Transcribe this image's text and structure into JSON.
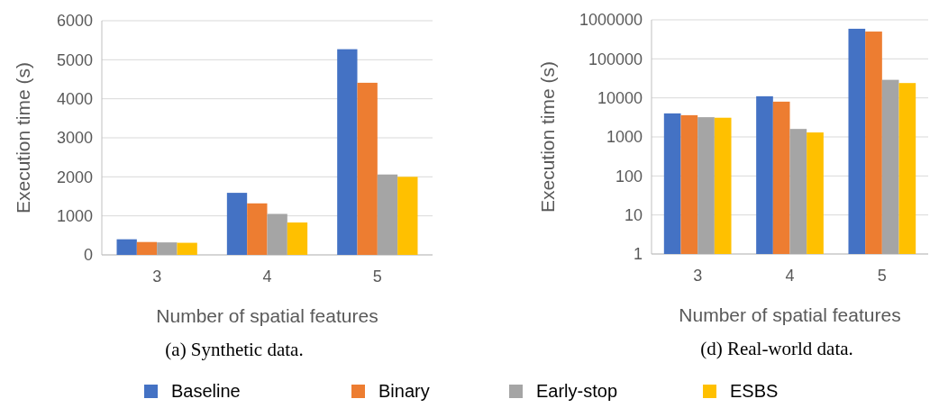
{
  "chart_data": [
    {
      "type": "bar",
      "title": "(a) Synthetic data.",
      "xlabel": "Number of spatial features",
      "ylabel": "Execution time (s)",
      "categories": [
        "3",
        "4",
        "5"
      ],
      "series": [
        {
          "name": "Baseline",
          "color": "#4472c4",
          "values": [
            400,
            1590,
            5270
          ]
        },
        {
          "name": "Binary",
          "color": "#ed7d31",
          "values": [
            330,
            1320,
            4410
          ]
        },
        {
          "name": "Early-stop",
          "color": "#a5a5a5",
          "values": [
            320,
            1050,
            2060
          ]
        },
        {
          "name": "ESBS",
          "color": "#ffc000",
          "values": [
            310,
            830,
            2000
          ]
        }
      ],
      "ylim": [
        0,
        6000
      ],
      "yticks": [
        0,
        1000,
        2000,
        3000,
        4000,
        5000,
        6000
      ],
      "grid": "y",
      "legend": "bottom"
    },
    {
      "type": "bar",
      "title": "(d) Real-world data.",
      "xlabel": "Number of spatial features",
      "ylabel": "Execution time (s)",
      "categories": [
        "3",
        "4",
        "5"
      ],
      "series": [
        {
          "color": "#4472c4",
          "values": [
            4000,
            11000,
            590000
          ]
        },
        {
          "color": "#ed7d31",
          "values": [
            3600,
            8000,
            500000
          ]
        },
        {
          "color": "#a5a5a5",
          "values": [
            3200,
            1600,
            29000
          ]
        },
        {
          "color": "#ffc000",
          "values": [
            3100,
            1300,
            24000
          ]
        }
      ],
      "ylim": [
        1,
        1000000
      ],
      "yticks": [
        1,
        10,
        100,
        1000,
        10000,
        100000,
        1000000
      ],
      "log": true,
      "grid": "y"
    }
  ]
}
